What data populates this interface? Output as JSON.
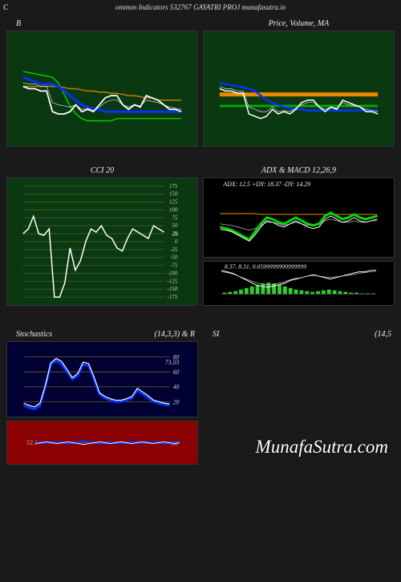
{
  "header": "ommon  Indicators 532767 GAYATRI PROJ munafasutra.in",
  "watermark": "MunafaSutra.com",
  "left_marker": "C",
  "row1": {
    "left": {
      "title_left": "B",
      "bg": "#0a3810",
      "lines": {
        "white": [
          52,
          50,
          50,
          48,
          48,
          30,
          28,
          28,
          30,
          36,
          30,
          32,
          30,
          36,
          42,
          44,
          44,
          36,
          32,
          36,
          34,
          44,
          42,
          40,
          36,
          32,
          32,
          30
        ],
        "green": [
          65,
          64,
          63,
          62,
          61,
          60,
          55,
          45,
          35,
          28,
          24,
          22,
          22,
          22,
          22,
          22,
          24,
          24,
          24,
          24,
          24,
          24,
          24,
          24,
          24,
          24,
          24,
          24
        ],
        "blue": [
          60,
          58,
          56,
          54,
          54,
          54,
          52,
          48,
          44,
          40,
          36,
          34,
          32,
          32,
          30,
          30,
          30,
          30,
          30,
          30,
          30,
          30,
          30,
          30,
          30,
          30,
          30,
          30
        ],
        "orange": [
          52,
          52,
          52,
          52,
          52,
          52,
          52,
          51,
          50,
          50,
          49,
          48,
          48,
          47,
          47,
          46,
          46,
          45,
          44,
          44,
          43,
          42,
          42,
          40,
          40,
          40,
          40,
          40
        ],
        "thin": [
          55,
          54,
          54,
          52,
          52,
          38,
          36,
          35,
          34,
          36,
          32,
          33,
          31,
          34,
          38,
          40,
          40,
          36,
          34,
          36,
          35,
          40,
          39,
          38,
          36,
          34,
          33,
          32
        ]
      }
    },
    "right": {
      "title": "Price,  Volume,  MA",
      "bg": "#0a3810",
      "lines": {
        "white": [
          50,
          48,
          48,
          46,
          46,
          28,
          26,
          24,
          26,
          32,
          28,
          30,
          28,
          32,
          38,
          40,
          40,
          34,
          30,
          34,
          32,
          40,
          38,
          36,
          34,
          30,
          30,
          28
        ],
        "blue": [
          55,
          54,
          53,
          52,
          51,
          50,
          48,
          44,
          40,
          38,
          36,
          34,
          33,
          32,
          32,
          31,
          31,
          31,
          31,
          31,
          31,
          31,
          31,
          31,
          31,
          31,
          31,
          31
        ],
        "green": [
          35,
          35,
          35,
          35,
          35,
          35,
          35,
          35,
          35,
          35,
          35,
          35,
          35,
          35,
          35,
          35,
          35,
          35,
          35,
          35,
          35,
          35,
          35,
          35,
          35,
          35,
          35,
          35
        ],
        "orange": [
          45,
          45,
          45,
          45,
          45,
          45,
          45,
          45,
          45,
          45,
          45,
          45,
          45,
          45,
          45,
          45,
          45,
          45,
          45,
          45,
          45,
          45,
          45,
          45,
          45,
          45,
          45,
          45
        ],
        "thin": [
          52,
          50,
          50,
          48,
          48,
          34,
          32,
          30,
          30,
          34,
          30,
          31,
          30,
          33,
          36,
          38,
          38,
          34,
          32,
          34,
          33,
          38,
          36,
          35,
          34,
          32,
          31,
          30
        ]
      }
    }
  },
  "row2": {
    "left": {
      "title": "CCI 20",
      "bg": "#0a3810",
      "grid_color": "#3a5a1a",
      "ticks": [
        175,
        150,
        125,
        100,
        75,
        50,
        25,
        0,
        -25,
        -50,
        -75,
        -100,
        -125,
        -150,
        -175
      ],
      "highlight_tick": "25",
      "series": [
        25,
        40,
        80,
        25,
        20,
        40,
        -175,
        -175,
        -130,
        -20,
        -90,
        -60,
        0,
        40,
        30,
        50,
        20,
        10,
        -20,
        -30,
        10,
        40,
        30,
        20,
        10,
        50,
        40,
        30
      ]
    },
    "right": {
      "title": "ADX   & MACD 12,26,9",
      "adx": {
        "label": "ADX: 12.5 +DY: 18.37 -DY: 14.29",
        "bg": "#000",
        "green": [
          38,
          36,
          34,
          30,
          26,
          22,
          32,
          42,
          50,
          48,
          44,
          42,
          46,
          50,
          46,
          42,
          40,
          42,
          52,
          56,
          52,
          48,
          50,
          54,
          50,
          48,
          50,
          52
        ],
        "white": [
          35,
          34,
          32,
          28,
          24,
          20,
          28,
          38,
          46,
          44,
          40,
          38,
          42,
          46,
          42,
          38,
          36,
          38,
          48,
          52,
          48,
          44,
          46,
          50,
          46,
          44,
          46,
          48
        ],
        "orange": [
          55,
          55,
          55,
          55,
          55,
          55,
          55,
          54,
          54,
          54,
          54,
          54,
          54,
          54,
          54,
          54,
          54,
          54,
          54,
          54,
          54,
          54,
          54,
          54,
          54,
          54,
          54,
          54
        ],
        "thin": [
          42,
          41,
          40,
          38,
          36,
          34,
          36,
          40,
          44,
          44,
          42,
          40,
          42,
          44,
          42,
          40,
          40,
          42,
          46,
          48,
          46,
          44,
          44,
          46,
          44,
          44,
          46,
          46
        ]
      },
      "macd": {
        "label": "8.37,  8.31,  0.0599999999999999",
        "bg": "#000",
        "hist": [
          2,
          3,
          4,
          6,
          8,
          10,
          12,
          14,
          15,
          14,
          12,
          10,
          8,
          6,
          5,
          4,
          3,
          4,
          5,
          6,
          5,
          4,
          3,
          2,
          2,
          1,
          1,
          1
        ],
        "hist_color": "#33cc33",
        "line1": [
          48,
          46,
          44,
          40,
          36,
          32,
          28,
          26,
          25,
          26,
          28,
          30,
          34,
          36,
          38,
          40,
          42,
          40,
          38,
          36,
          38,
          40,
          42,
          44,
          46,
          46,
          48,
          48
        ],
        "line2": [
          46,
          45,
          43,
          40,
          37,
          34,
          31,
          29,
          28,
          28,
          30,
          32,
          35,
          37,
          38,
          40,
          41,
          40,
          39,
          38,
          39,
          40,
          41,
          42,
          44,
          45,
          46,
          47
        ]
      }
    }
  },
  "row3": {
    "left": {
      "title_left": "Stochastics",
      "title_right": "(14,3,3) & R",
      "stoch": {
        "bg": "#000033",
        "ticks": [
          80,
          60,
          40,
          20
        ],
        "right_label": "73.03",
        "blue": [
          15,
          12,
          10,
          15,
          40,
          70,
          75,
          70,
          60,
          50,
          55,
          70,
          68,
          50,
          30,
          25,
          22,
          20,
          20,
          22,
          25,
          35,
          30,
          25,
          20,
          18,
          16,
          15
        ],
        "white": [
          18,
          15,
          13,
          18,
          42,
          72,
          78,
          74,
          63,
          52,
          58,
          73,
          71,
          53,
          32,
          27,
          24,
          22,
          22,
          24,
          27,
          38,
          33,
          28,
          22,
          20,
          18,
          17
        ]
      },
      "rsi": {
        "bg": "#8b0000",
        "ticks": [
          50
        ],
        "left_label": "52.1",
        "blue": [
          52,
          50,
          48,
          50,
          52,
          50,
          48,
          50,
          52,
          54,
          52,
          50,
          48,
          50,
          52,
          50,
          48,
          50,
          52,
          50,
          48,
          50,
          52,
          50,
          48,
          50,
          52,
          50
        ],
        "white": [
          48,
          50,
          52,
          50,
          48,
          50,
          52,
          50,
          48,
          46,
          48,
          50,
          52,
          50,
          48,
          50,
          52,
          50,
          48,
          50,
          52,
          50,
          48,
          50,
          52,
          50,
          48,
          50
        ]
      }
    },
    "right": {
      "title_left": "SI",
      "title_right": "(14,5"
    }
  }
}
